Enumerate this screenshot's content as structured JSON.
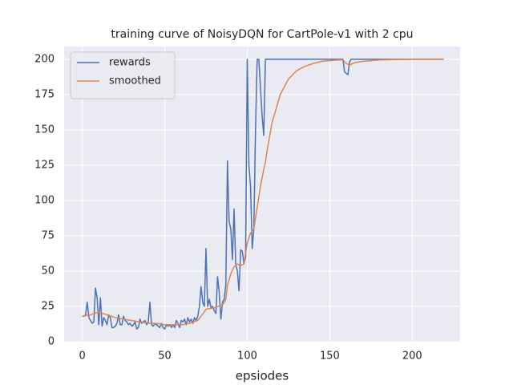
{
  "chart_data": {
    "type": "line",
    "title": "training curve of NoisyDQN for CartPole-v1 with 2 cpu",
    "xlabel": "epsiodes",
    "xlim": [
      -11,
      229
    ],
    "ylim": [
      0,
      209
    ],
    "xticks": [
      0,
      50,
      100,
      150,
      200
    ],
    "yticks": [
      0,
      25,
      50,
      75,
      100,
      125,
      150,
      175,
      200
    ],
    "grid": true,
    "legend": "upper left",
    "series": [
      {
        "name": "rewards",
        "color": "#4c72b0",
        "x": [
          0,
          1,
          2,
          3,
          4,
          5,
          6,
          7,
          8,
          9,
          10,
          11,
          12,
          13,
          14,
          15,
          16,
          17,
          18,
          19,
          20,
          21,
          22,
          23,
          24,
          25,
          26,
          27,
          28,
          29,
          30,
          31,
          32,
          33,
          34,
          35,
          36,
          37,
          38,
          39,
          40,
          41,
          42,
          43,
          44,
          45,
          46,
          47,
          48,
          49,
          50,
          51,
          52,
          53,
          54,
          55,
          56,
          57,
          58,
          59,
          60,
          61,
          62,
          63,
          64,
          65,
          66,
          67,
          68,
          69,
          70,
          71,
          72,
          73,
          74,
          75,
          76,
          77,
          78,
          79,
          80,
          81,
          82,
          83,
          84,
          85,
          86,
          87,
          88,
          89,
          90,
          91,
          92,
          93,
          94,
          95,
          96,
          97,
          98,
          99,
          100,
          101,
          102,
          103,
          104,
          105,
          106,
          107,
          108,
          109,
          110,
          111,
          158,
          159,
          160,
          161,
          162,
          163,
          219
        ],
        "values": [
          18,
          18,
          19,
          28,
          17,
          15,
          13,
          14,
          38,
          31,
          12,
          31,
          11,
          17,
          15,
          12,
          19,
          17,
          10,
          10,
          11,
          13,
          19,
          12,
          12,
          18,
          15,
          14,
          12,
          13,
          11,
          12,
          14,
          9,
          10,
          16,
          13,
          14,
          15,
          12,
          14,
          28,
          12,
          11,
          13,
          12,
          11,
          10,
          13,
          10,
          9,
          12,
          11,
          12,
          10,
          12,
          10,
          15,
          13,
          10,
          15,
          14,
          16,
          12,
          17,
          14,
          16,
          13,
          17,
          15,
          18,
          25,
          39,
          28,
          25,
          66,
          25,
          30,
          24,
          25,
          22,
          20,
          46,
          35,
          16,
          28,
          30,
          40,
          128,
          85,
          80,
          58,
          94,
          55,
          50,
          36,
          65,
          64,
          55,
          60,
          200,
          125,
          110,
          66,
          80,
          150,
          200,
          200,
          180,
          160,
          146,
          200,
          200,
          191,
          190,
          189,
          198,
          200,
          200
        ]
      },
      {
        "name": "smoothed",
        "color": "#dd8452",
        "x": [
          0,
          5,
          10,
          15,
          20,
          25,
          30,
          35,
          40,
          45,
          50,
          55,
          60,
          65,
          70,
          72,
          75,
          80,
          85,
          87,
          88,
          90,
          92,
          94,
          96,
          98,
          100,
          102,
          104,
          106,
          108,
          110,
          111,
          112,
          115,
          120,
          125,
          130,
          135,
          140,
          145,
          150,
          155,
          158,
          160,
          162,
          165,
          170,
          180,
          190,
          200,
          219
        ],
        "values": [
          18,
          19,
          21,
          19,
          17,
          16,
          15,
          14,
          13,
          13,
          12,
          12,
          12,
          13,
          15,
          18,
          23,
          24,
          26,
          30,
          40,
          48,
          53,
          55,
          54,
          55,
          70,
          77,
          80,
          95,
          110,
          122,
          127,
          135,
          155,
          175,
          186,
          192,
          195,
          197,
          198.5,
          199,
          199.5,
          199.5,
          197,
          196,
          197.5,
          198.5,
          199.5,
          199.8,
          200,
          200
        ]
      }
    ]
  }
}
